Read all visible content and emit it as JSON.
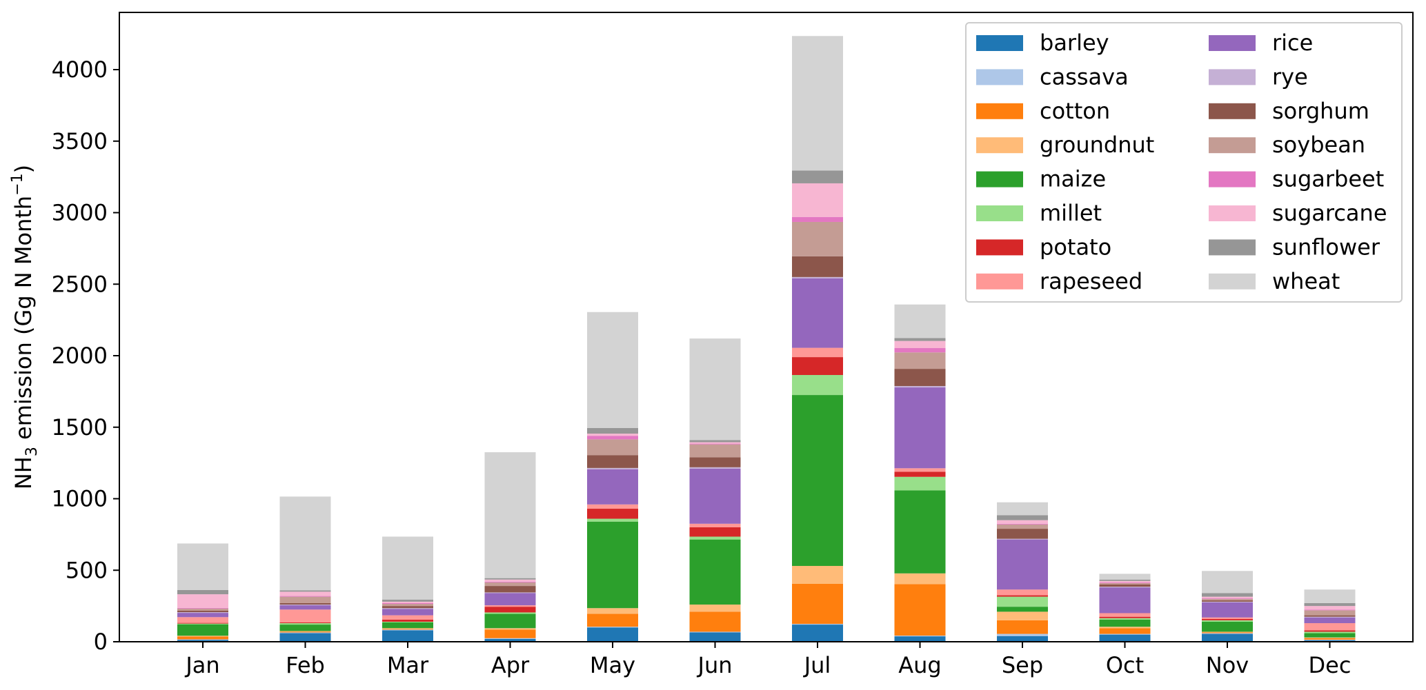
{
  "chart_data": {
    "type": "bar",
    "stacked": true,
    "title": "",
    "xlabel": "",
    "ylabel": {
      "prefix": "NH",
      "sub": "3",
      "mid": " emission (Gg N Month",
      "sup": "−1",
      "suffix": ")"
    },
    "ylim": [
      0,
      4400
    ],
    "yticks": [
      0,
      500,
      1000,
      1500,
      2000,
      2500,
      3000,
      3500,
      4000
    ],
    "grid": false,
    "legend": {
      "placement": "top-right",
      "columns": 2
    },
    "categories": [
      "Jan",
      "Feb",
      "Mar",
      "Apr",
      "May",
      "Jun",
      "Jul",
      "Aug",
      "Sep",
      "Oct",
      "Nov",
      "Dec"
    ],
    "series": [
      {
        "name": "barley",
        "color": "#1f77b4",
        "values": [
          12,
          60,
          80,
          20,
          100,
          65,
          120,
          38,
          40,
          50,
          55,
          10
        ]
      },
      {
        "name": "cassava",
        "color": "#aec7e8",
        "values": [
          5,
          5,
          5,
          5,
          5,
          5,
          5,
          5,
          15,
          5,
          5,
          5
        ]
      },
      {
        "name": "cotton",
        "color": "#ff7f0e",
        "values": [
          20,
          5,
          5,
          60,
          90,
          140,
          280,
          360,
          95,
          40,
          5,
          10
        ]
      },
      {
        "name": "groundnut",
        "color": "#ffbb78",
        "values": [
          5,
          5,
          5,
          10,
          40,
          50,
          125,
          75,
          60,
          10,
          5,
          5
        ]
      },
      {
        "name": "maize",
        "color": "#2ca02c",
        "values": [
          80,
          45,
          40,
          100,
          605,
          455,
          1195,
          580,
          35,
          50,
          70,
          30
        ]
      },
      {
        "name": "millet",
        "color": "#98df8a",
        "values": [
          5,
          10,
          5,
          10,
          20,
          20,
          140,
          95,
          70,
          10,
          10,
          10
        ]
      },
      {
        "name": "potato",
        "color": "#d62728",
        "values": [
          5,
          5,
          15,
          40,
          70,
          65,
          125,
          35,
          10,
          10,
          10,
          10
        ]
      },
      {
        "name": "rapeseed",
        "color": "#ff9896",
        "values": [
          40,
          90,
          30,
          10,
          30,
          25,
          65,
          25,
          40,
          25,
          10,
          50
        ]
      },
      {
        "name": "rice",
        "color": "#9467bd",
        "values": [
          30,
          30,
          45,
          85,
          245,
          385,
          485,
          565,
          350,
          180,
          105,
          40
        ]
      },
      {
        "name": "rye",
        "color": "#c5b0d5",
        "values": [
          5,
          5,
          5,
          5,
          10,
          10,
          10,
          10,
          5,
          5,
          5,
          5
        ]
      },
      {
        "name": "sorghum",
        "color": "#8c564b",
        "values": [
          10,
          10,
          15,
          45,
          90,
          70,
          145,
          120,
          70,
          15,
          10,
          10
        ]
      },
      {
        "name": "soybean",
        "color": "#c49c94",
        "values": [
          15,
          45,
          15,
          25,
          110,
          90,
          240,
          115,
          30,
          10,
          10,
          35
        ]
      },
      {
        "name": "sugarbeet",
        "color": "#e377c2",
        "values": [
          5,
          5,
          5,
          5,
          25,
          5,
          35,
          30,
          5,
          5,
          5,
          5
        ]
      },
      {
        "name": "sugarcane",
        "color": "#f7b6d2",
        "values": [
          95,
          30,
          10,
          15,
          15,
          10,
          235,
          50,
          25,
          10,
          10,
          25
        ]
      },
      {
        "name": "sunflower",
        "color": "#969696",
        "values": [
          30,
          10,
          15,
          10,
          40,
          15,
          90,
          20,
          35,
          10,
          25,
          20
        ]
      },
      {
        "name": "wheat",
        "color": "#d3d3d3",
        "values": [
          325,
          655,
          440,
          880,
          810,
          710,
          940,
          235,
          90,
          40,
          155,
          95
        ]
      }
    ]
  }
}
